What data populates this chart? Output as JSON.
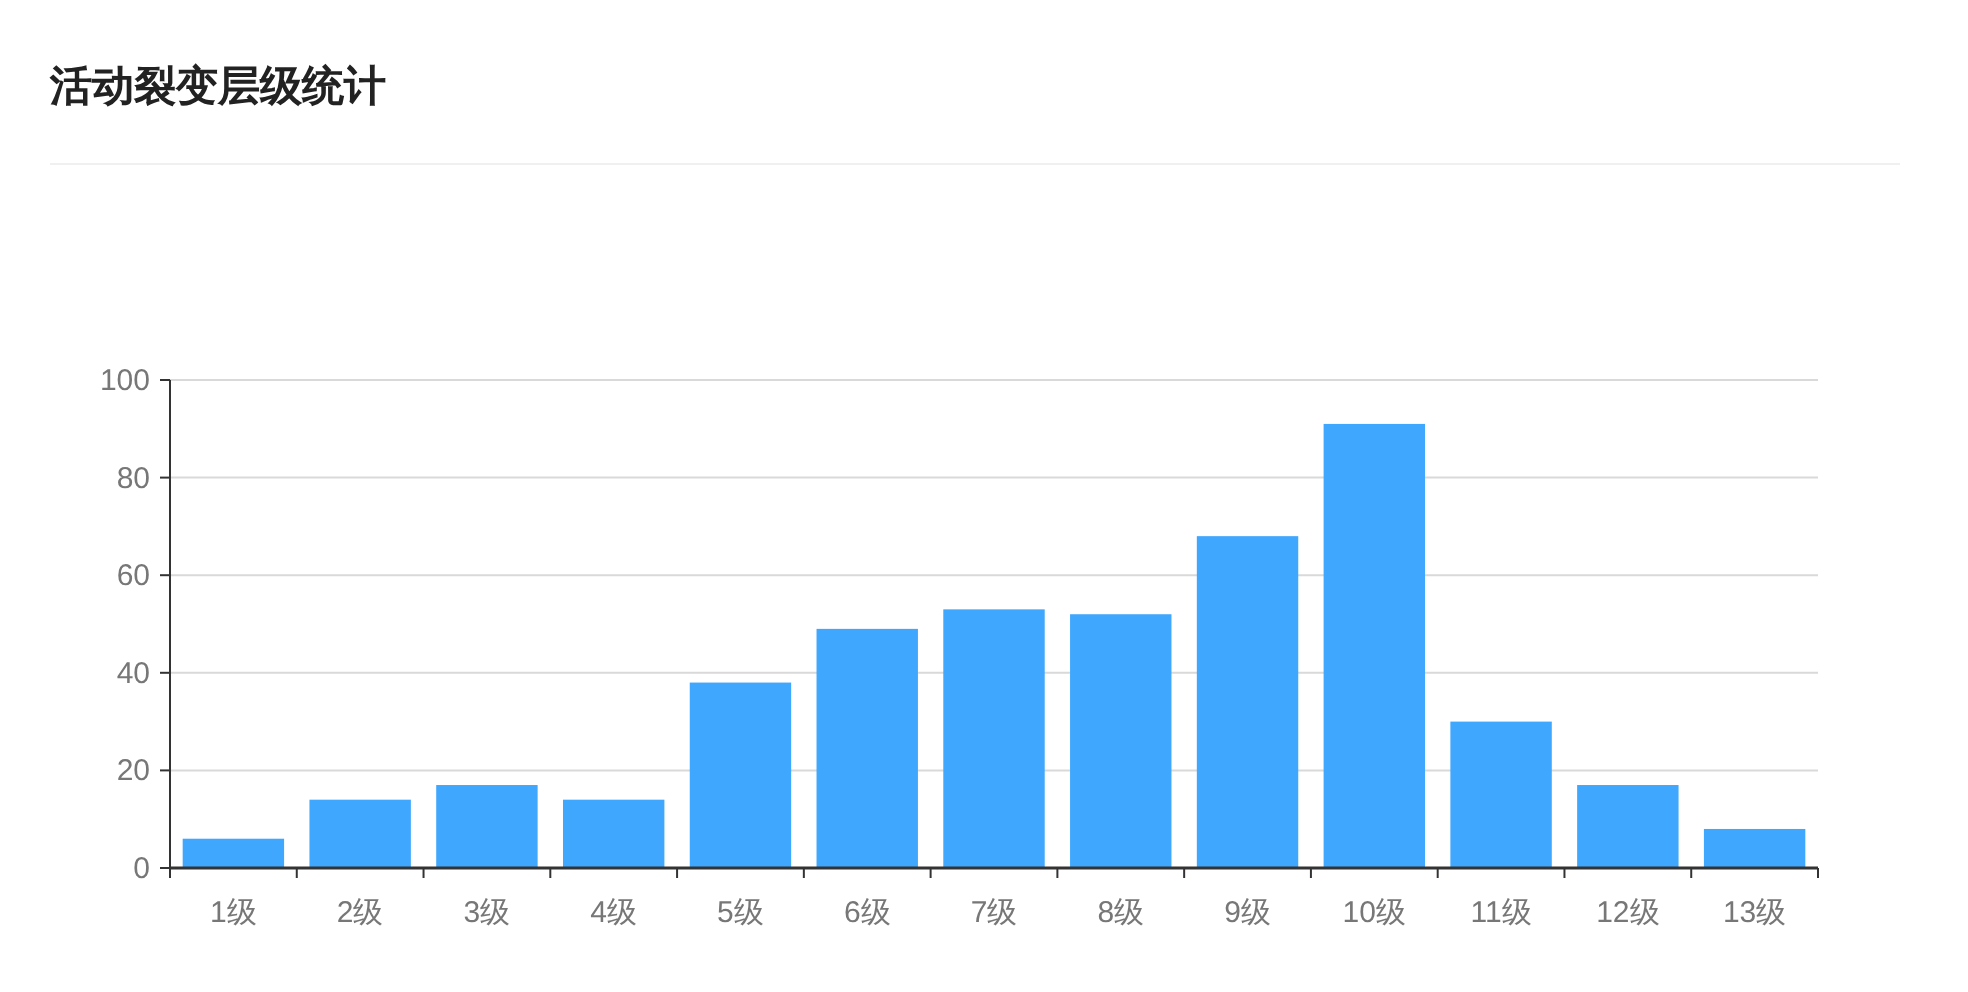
{
  "chart_data": {
    "type": "bar",
    "title": "活动裂变层级统计",
    "categories": [
      "1级",
      "2级",
      "3级",
      "4级",
      "5级",
      "6级",
      "7级",
      "8级",
      "9级",
      "10级",
      "11级",
      "12级",
      "13级"
    ],
    "values": [
      6,
      14,
      17,
      14,
      38,
      49,
      53,
      52,
      68,
      91,
      30,
      17,
      8
    ],
    "color": "#3fa7fd",
    "ylim": [
      0,
      100
    ],
    "yticks": [
      0,
      20,
      40,
      60,
      80,
      100
    ],
    "grid": "y"
  }
}
